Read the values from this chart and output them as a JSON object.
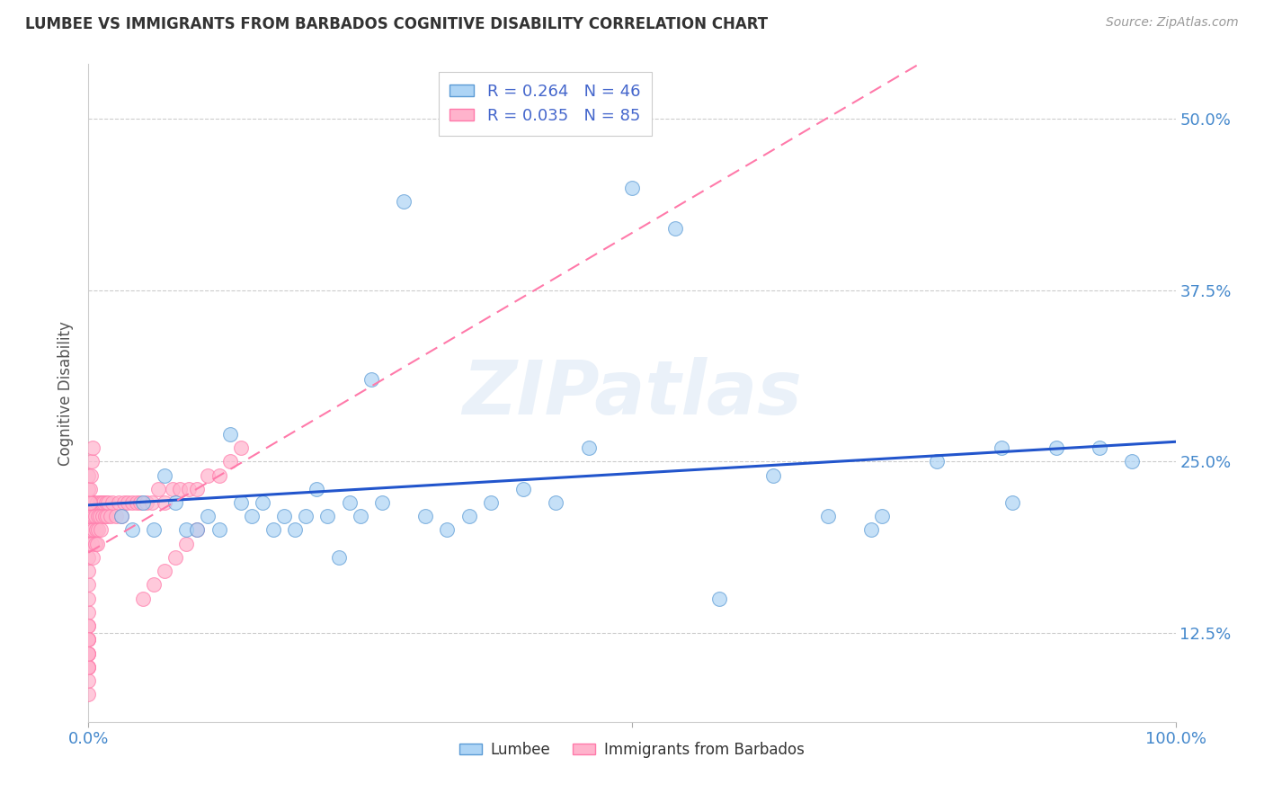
{
  "title": "LUMBEE VS IMMIGRANTS FROM BARBADOS COGNITIVE DISABILITY CORRELATION CHART",
  "source": "Source: ZipAtlas.com",
  "ylabel": "Cognitive Disability",
  "ytick_vals": [
    0.125,
    0.25,
    0.375,
    0.5
  ],
  "ytick_labels": [
    "12.5%",
    "25.0%",
    "37.5%",
    "50.0%"
  ],
  "xtick_vals": [
    0.0,
    1.0
  ],
  "xtick_labels": [
    "0.0%",
    "100.0%"
  ],
  "xlim": [
    0.0,
    1.0
  ],
  "ylim": [
    0.06,
    0.54
  ],
  "legend_r1": "R = 0.264",
  "legend_n1": "N = 46",
  "legend_r2": "R = 0.035",
  "legend_n2": "N = 85",
  "lumbee_color": "#add4f5",
  "lumbee_edge_color": "#5b9bd5",
  "lumbee_line_color": "#2255cc",
  "barbados_color": "#ffb3cc",
  "barbados_edge_color": "#ff7aaa",
  "barbados_line_color": "#ee6688",
  "background_color": "#ffffff",
  "watermark": "ZIPatlas",
  "lumbee_x": [
    0.03,
    0.04,
    0.05,
    0.06,
    0.07,
    0.08,
    0.09,
    0.1,
    0.11,
    0.12,
    0.13,
    0.14,
    0.15,
    0.16,
    0.17,
    0.18,
    0.19,
    0.2,
    0.21,
    0.22,
    0.23,
    0.24,
    0.25,
    0.26,
    0.27,
    0.29,
    0.31,
    0.33,
    0.35,
    0.37,
    0.4,
    0.43,
    0.46,
    0.5,
    0.54,
    0.58,
    0.63,
    0.68,
    0.73,
    0.78,
    0.84,
    0.89,
    0.93,
    0.96,
    0.85,
    0.72
  ],
  "lumbee_y": [
    0.21,
    0.2,
    0.22,
    0.2,
    0.24,
    0.22,
    0.2,
    0.2,
    0.21,
    0.2,
    0.27,
    0.22,
    0.21,
    0.22,
    0.2,
    0.21,
    0.2,
    0.21,
    0.23,
    0.21,
    0.18,
    0.22,
    0.21,
    0.31,
    0.22,
    0.44,
    0.21,
    0.2,
    0.21,
    0.22,
    0.23,
    0.22,
    0.26,
    0.45,
    0.42,
    0.15,
    0.24,
    0.21,
    0.21,
    0.25,
    0.26,
    0.26,
    0.26,
    0.25,
    0.22,
    0.2
  ],
  "barbados_x": [
    0.0,
    0.0,
    0.0,
    0.0,
    0.0,
    0.0,
    0.0,
    0.0,
    0.0,
    0.0,
    0.0,
    0.0,
    0.0,
    0.0,
    0.0,
    0.0,
    0.0,
    0.0,
    0.0,
    0.0,
    0.002,
    0.002,
    0.002,
    0.003,
    0.003,
    0.004,
    0.004,
    0.005,
    0.005,
    0.005,
    0.006,
    0.006,
    0.007,
    0.008,
    0.008,
    0.009,
    0.009,
    0.01,
    0.01,
    0.011,
    0.012,
    0.013,
    0.014,
    0.015,
    0.016,
    0.017,
    0.018,
    0.02,
    0.022,
    0.025,
    0.028,
    0.03,
    0.033,
    0.036,
    0.04,
    0.044,
    0.048,
    0.053,
    0.058,
    0.064,
    0.07,
    0.077,
    0.084,
    0.092,
    0.1,
    0.11,
    0.12,
    0.13,
    0.14,
    0.05,
    0.06,
    0.07,
    0.08,
    0.09,
    0.1,
    0.0,
    0.0,
    0.0,
    0.0,
    0.0,
    0.001,
    0.001,
    0.002,
    0.003,
    0.004
  ],
  "barbados_y": [
    0.1,
    0.11,
    0.12,
    0.13,
    0.14,
    0.15,
    0.16,
    0.17,
    0.18,
    0.19,
    0.2,
    0.21,
    0.22,
    0.23,
    0.24,
    0.1,
    0.11,
    0.12,
    0.13,
    0.22,
    0.2,
    0.21,
    0.22,
    0.19,
    0.22,
    0.18,
    0.22,
    0.2,
    0.21,
    0.22,
    0.19,
    0.21,
    0.2,
    0.19,
    0.22,
    0.2,
    0.21,
    0.22,
    0.21,
    0.2,
    0.22,
    0.21,
    0.22,
    0.21,
    0.22,
    0.21,
    0.22,
    0.21,
    0.22,
    0.21,
    0.22,
    0.21,
    0.22,
    0.22,
    0.22,
    0.22,
    0.22,
    0.22,
    0.22,
    0.23,
    0.22,
    0.23,
    0.23,
    0.23,
    0.23,
    0.24,
    0.24,
    0.25,
    0.26,
    0.15,
    0.16,
    0.17,
    0.18,
    0.19,
    0.2,
    0.08,
    0.09,
    0.1,
    0.11,
    0.12,
    0.22,
    0.23,
    0.24,
    0.25,
    0.26
  ]
}
